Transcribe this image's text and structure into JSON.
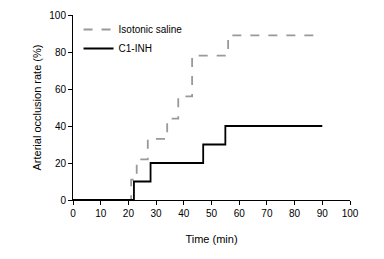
{
  "chart_data": {
    "type": "line",
    "x_label": "Time (min)",
    "y_label": "Arterial occlusion rate (%)",
    "series": [
      {
        "name": "Isotonic saline",
        "color": "#999999",
        "line_style": "dashed",
        "x": [
          0,
          21,
          23,
          27,
          34,
          38,
          43,
          56,
          90
        ],
        "values": [
          0,
          11,
          22,
          33,
          44,
          56,
          78,
          89,
          89
        ]
      },
      {
        "name": "C1-INH",
        "color": "#000000",
        "line_style": "solid",
        "x": [
          0,
          22,
          28,
          47,
          55,
          90
        ],
        "values": [
          0,
          10,
          20,
          30,
          40,
          40
        ]
      }
    ],
    "xlim": [
      0,
      100
    ],
    "xticks": [
      0,
      10,
      20,
      30,
      40,
      50,
      60,
      70,
      80,
      90,
      100
    ],
    "ylim": [
      0,
      100
    ],
    "yticks": [
      0,
      20,
      40,
      60,
      80,
      100
    ],
    "grid": false,
    "legend": "top-left"
  }
}
